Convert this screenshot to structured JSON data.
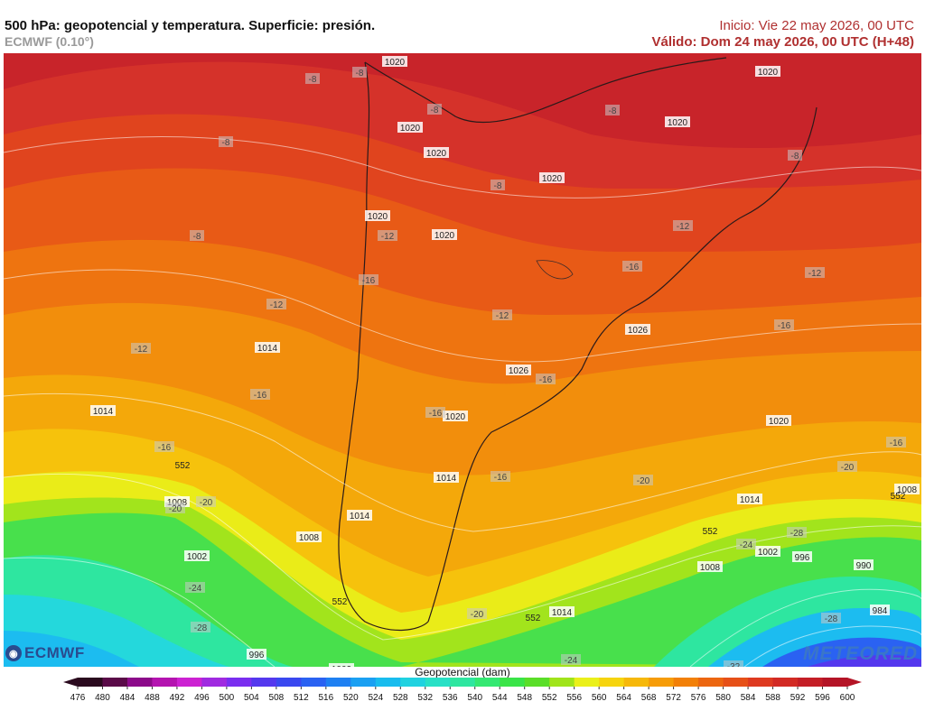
{
  "header": {
    "title": "500 hPa: geopotencial y temperatura. Superficie: presión.",
    "model": "ECMWF (0.10°)",
    "init": "Inicio: Vie 22 may 2026, 00 UTC",
    "valid": "Válido: Dom 24 may 2026, 00 UTC (H+48)"
  },
  "map": {
    "field": "geopotential 500 hPa (dam), filled contours",
    "labels": [
      {
        "text": "1020",
        "kind": "pressure"
      },
      {
        "text": "1020",
        "kind": "pressure"
      },
      {
        "text": "1020",
        "kind": "pressure"
      },
      {
        "text": "1020",
        "kind": "pressure"
      },
      {
        "text": "1020",
        "kind": "pressure"
      },
      {
        "text": "1020",
        "kind": "pressure"
      },
      {
        "text": "1020",
        "kind": "pressure"
      },
      {
        "text": "1020",
        "kind": "pressure"
      },
      {
        "text": "1020",
        "kind": "pressure"
      },
      {
        "text": "1020",
        "kind": "pressure"
      },
      {
        "text": "1026",
        "kind": "pressure"
      },
      {
        "text": "1026",
        "kind": "pressure"
      },
      {
        "text": "1014",
        "kind": "pressure"
      },
      {
        "text": "1014",
        "kind": "pressure"
      },
      {
        "text": "1014",
        "kind": "pressure"
      },
      {
        "text": "1014",
        "kind": "pressure"
      },
      {
        "text": "1014",
        "kind": "pressure"
      },
      {
        "text": "1014",
        "kind": "pressure"
      },
      {
        "text": "1008",
        "kind": "pressure"
      },
      {
        "text": "1008",
        "kind": "pressure"
      },
      {
        "text": "1008",
        "kind": "pressure"
      },
      {
        "text": "1008",
        "kind": "pressure"
      },
      {
        "text": "1002",
        "kind": "pressure"
      },
      {
        "text": "1002",
        "kind": "pressure"
      },
      {
        "text": "1002",
        "kind": "pressure"
      },
      {
        "text": "996",
        "kind": "pressure"
      },
      {
        "text": "996",
        "kind": "pressure"
      },
      {
        "text": "990",
        "kind": "pressure"
      },
      {
        "text": "984",
        "kind": "pressure"
      },
      {
        "text": "-8",
        "kind": "temp"
      },
      {
        "text": "-8",
        "kind": "temp"
      },
      {
        "text": "-8",
        "kind": "temp"
      },
      {
        "text": "-8",
        "kind": "temp"
      },
      {
        "text": "-8",
        "kind": "temp"
      },
      {
        "text": "-8",
        "kind": "temp"
      },
      {
        "text": "-8",
        "kind": "temp"
      },
      {
        "text": "-8",
        "kind": "temp"
      },
      {
        "text": "-12",
        "kind": "temp"
      },
      {
        "text": "-12",
        "kind": "temp"
      },
      {
        "text": "-12",
        "kind": "temp"
      },
      {
        "text": "-12",
        "kind": "temp"
      },
      {
        "text": "-12",
        "kind": "temp"
      },
      {
        "text": "-12",
        "kind": "temp"
      },
      {
        "text": "-16",
        "kind": "temp"
      },
      {
        "text": "-16",
        "kind": "temp"
      },
      {
        "text": "-16",
        "kind": "temp"
      },
      {
        "text": "-16",
        "kind": "temp"
      },
      {
        "text": "-16",
        "kind": "temp"
      },
      {
        "text": "-16",
        "kind": "temp"
      },
      {
        "text": "-16",
        "kind": "temp"
      },
      {
        "text": "-16",
        "kind": "temp"
      },
      {
        "text": "-16",
        "kind": "temp"
      },
      {
        "text": "-20",
        "kind": "temp"
      },
      {
        "text": "-20",
        "kind": "temp"
      },
      {
        "text": "-20",
        "kind": "temp"
      },
      {
        "text": "-20",
        "kind": "temp"
      },
      {
        "text": "-20",
        "kind": "temp"
      },
      {
        "text": "-24",
        "kind": "temp"
      },
      {
        "text": "-24",
        "kind": "temp"
      },
      {
        "text": "-24",
        "kind": "temp"
      },
      {
        "text": "-28",
        "kind": "temp"
      },
      {
        "text": "-28",
        "kind": "temp"
      },
      {
        "text": "-28",
        "kind": "temp"
      },
      {
        "text": "-32",
        "kind": "temp"
      },
      {
        "text": "552",
        "kind": "isohypse"
      },
      {
        "text": "552",
        "kind": "isohypse"
      },
      {
        "text": "552",
        "kind": "isohypse"
      },
      {
        "text": "552",
        "kind": "isohypse"
      },
      {
        "text": "552",
        "kind": "isohypse"
      }
    ]
  },
  "legend": {
    "title": "Geopotencial (dam)",
    "ticks": [
      "476",
      "480",
      "484",
      "488",
      "492",
      "496",
      "500",
      "504",
      "508",
      "512",
      "516",
      "520",
      "524",
      "528",
      "532",
      "536",
      "540",
      "544",
      "548",
      "552",
      "556",
      "560",
      "564",
      "568",
      "572",
      "576",
      "580",
      "584",
      "588",
      "592",
      "596",
      "600"
    ],
    "colors": [
      "#2a0a1e",
      "#5a0a48",
      "#8c0a8a",
      "#b414b0",
      "#cc22d2",
      "#a02ae0",
      "#7a2ef0",
      "#5438ee",
      "#3a48f0",
      "#2a62f2",
      "#1e80f2",
      "#1aa0f2",
      "#18bcee",
      "#20d2e0",
      "#28e0c6",
      "#2ee6a0",
      "#34e872",
      "#3ae448",
      "#5ade28",
      "#a0e41a",
      "#eaf01a",
      "#f6d40e",
      "#f6b80a",
      "#f69c08",
      "#f28008",
      "#ec6610",
      "#e65018",
      "#de3a20",
      "#d22a24",
      "#c41e26",
      "#b41426"
    ]
  },
  "logos": {
    "left": "ECMWF",
    "right": "METEORED"
  }
}
